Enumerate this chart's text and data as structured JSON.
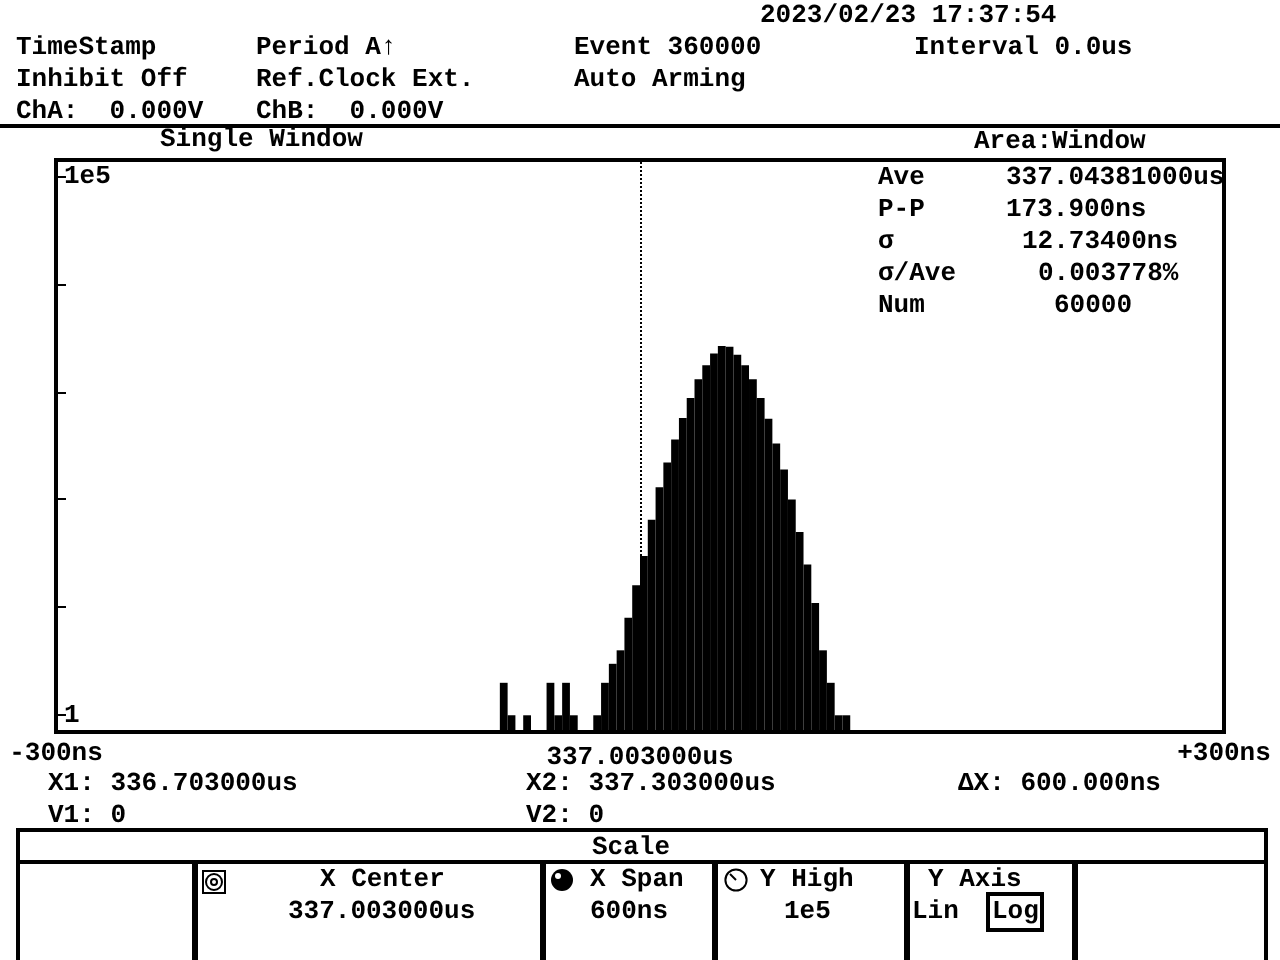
{
  "chart_data": {
    "type": "histogram",
    "title": "Single Window",
    "bins": [
      -72,
      -68,
      -64,
      -60,
      -56,
      -48,
      -44,
      -40,
      -36,
      -32,
      -24,
      -20,
      -16,
      -12,
      -8,
      -4,
      0,
      4,
      8,
      12,
      16,
      20,
      24,
      28,
      32,
      36,
      40,
      44,
      48,
      52,
      56,
      60,
      64,
      68,
      72,
      76,
      80,
      84,
      88,
      92,
      96,
      100,
      104,
      108
    ],
    "values": [
      2,
      1,
      null,
      1,
      null,
      2,
      1,
      2,
      1,
      null,
      1,
      2,
      3,
      4,
      8,
      16,
      30,
      65,
      130,
      220,
      360,
      570,
      870,
      1300,
      1750,
      2250,
      2650,
      2600,
      2200,
      1750,
      1300,
      870,
      560,
      330,
      190,
      100,
      50,
      25,
      11,
      4,
      2,
      1,
      1
    ],
    "color": "#000000",
    "xlim": [
      -300,
      300
    ],
    "xticks": [
      {
        "value": -300,
        "label": "-300ns"
      },
      {
        "value": 300,
        "label": "+300ns"
      }
    ],
    "ylim": [
      0.7,
      140000
    ],
    "yticks": [
      {
        "value": 1,
        "label": "1"
      },
      {
        "value": 10,
        "label": null
      },
      {
        "value": 100,
        "label": null
      },
      {
        "value": 1000,
        "label": null
      },
      {
        "value": 10000,
        "label": null
      },
      {
        "value": 100000,
        "label": "1e5"
      }
    ],
    "log": "y",
    "grid": false,
    "ref_lines": [
      {
        "axis": "x",
        "value": 0,
        "label": "337.003000us",
        "line_style": "dotted",
        "color": "#000000"
      }
    ],
    "annotations": [
      "2023/02/23 17:37:54",
      "TimeStamp",
      "Period A↑",
      "Event 360000",
      "Interval 0.0us",
      "Inhibit Off",
      "Ref.Clock Ext.",
      "Auto Arming",
      "ChA:  0.000V",
      "ChB:  0.000V",
      "Area:Window",
      "Ave",
      "337.04381000us",
      "P-P",
      "173.900ns",
      "σ",
      "12.73400ns",
      "σ/Ave",
      "0.003778%",
      "Num",
      "60000",
      "X1: 336.703000us",
      "X2: 337.303000us",
      "ΔX: 600.000ns",
      "V1: 0",
      "V2: 0",
      "Scale",
      "X Center",
      "337.003000us",
      "X Span",
      "600ns",
      "Y High",
      "1e5",
      "Y Axis",
      "Lin",
      "Log"
    ]
  }
}
